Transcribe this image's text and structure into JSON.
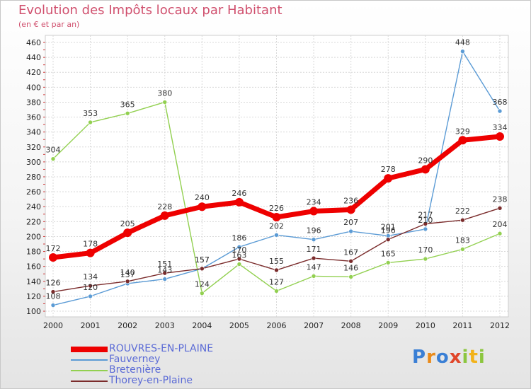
{
  "title": "Evolution des Impôts locaux par Habitant",
  "subtitle": "(en € et par an)",
  "logo": {
    "letters": [
      "P",
      "r",
      "o",
      "x",
      "i",
      "t",
      "i"
    ],
    "colors": [
      "#3a7fd5",
      "#e98a1a",
      "#3a7fd5",
      "#e0462a",
      "#8cc63f",
      "#f2b21a",
      "#8cc63f"
    ]
  },
  "chart_data": {
    "type": "line",
    "title": "Evolution des Impôts locaux par Habitant",
    "subtitle": "(en € et par an)",
    "x": [
      "2000",
      "2001",
      "2002",
      "2003",
      "2004",
      "2005",
      "2006",
      "2007",
      "2008",
      "2009",
      "2010",
      "2011",
      "2012"
    ],
    "ylim": [
      100,
      460
    ],
    "yticks": [
      100,
      120,
      140,
      160,
      180,
      200,
      220,
      240,
      260,
      280,
      300,
      320,
      340,
      360,
      380,
      400,
      420,
      440,
      460
    ],
    "grid": true,
    "legend_position": "bottom-left",
    "series": [
      {
        "name": "ROUVRES-EN-PLAINE",
        "color": "#ee0000",
        "values": [
          172,
          178,
          205,
          228,
          240,
          246,
          226,
          234,
          236,
          278,
          290,
          329,
          334
        ],
        "labels": [
          "172",
          "178",
          "205",
          "228",
          "240",
          "246",
          "226",
          "234",
          "236",
          "278",
          "290",
          "329",
          "334"
        ]
      },
      {
        "name": "Fauverney",
        "color": "#5b9bd5",
        "values": [
          108,
          120,
          137,
          143,
          157,
          186,
          202,
          196,
          207,
          201,
          210,
          448,
          368
        ],
        "labels": [
          "108",
          "120",
          "137",
          "143",
          "157",
          "186",
          "202",
          "196",
          "207",
          "201",
          "210",
          "448",
          "368"
        ]
      },
      {
        "name": "Bretenière",
        "color": "#92d050",
        "values": [
          304,
          353,
          365,
          380,
          124,
          163,
          127,
          147,
          146,
          165,
          170,
          183,
          204
        ],
        "labels": [
          "304",
          "353",
          "365",
          "380",
          "124",
          "163",
          "127",
          "147",
          "146",
          "165",
          "170",
          "183",
          "204"
        ]
      },
      {
        "name": "Thorey-en-Plaine",
        "color": "#7b2c2c",
        "values": [
          126,
          134,
          140,
          151,
          157,
          170,
          155,
          171,
          167,
          196,
          217,
          222,
          238
        ],
        "labels": [
          "126",
          "134",
          "140",
          "151",
          "157",
          "170",
          "155",
          "171",
          "167",
          "196",
          "217",
          "222",
          "238"
        ]
      }
    ]
  }
}
